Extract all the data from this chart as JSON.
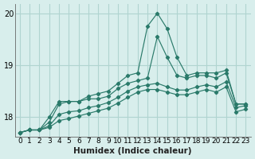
{
  "xlabel": "Humidex (Indice chaleur)",
  "background_color": "#d8eeec",
  "grid_color": "#b0d4d0",
  "line_color": "#2a7a6a",
  "xlim": [
    -0.5,
    23.5
  ],
  "ylim": [
    17.62,
    20.18
  ],
  "yticks": [
    18,
    19,
    20
  ],
  "xticks": [
    0,
    1,
    2,
    3,
    4,
    5,
    6,
    7,
    8,
    9,
    10,
    11,
    12,
    13,
    14,
    15,
    16,
    17,
    18,
    19,
    20,
    21,
    22,
    23
  ],
  "series1": [
    17.7,
    17.75,
    17.75,
    18.0,
    18.3,
    18.3,
    18.3,
    18.4,
    18.45,
    18.5,
    18.65,
    18.8,
    18.85,
    19.75,
    20.0,
    19.7,
    19.15,
    18.8,
    18.85,
    18.85,
    18.85,
    18.9,
    18.25,
    18.25
  ],
  "series2": [
    17.7,
    17.75,
    17.75,
    17.9,
    18.25,
    18.3,
    18.3,
    18.35,
    18.35,
    18.4,
    18.55,
    18.65,
    18.7,
    18.75,
    19.55,
    19.15,
    18.8,
    18.75,
    18.8,
    18.8,
    18.75,
    18.85,
    18.25,
    18.25
  ],
  "series3": [
    17.7,
    17.75,
    17.75,
    17.83,
    18.05,
    18.1,
    18.12,
    18.18,
    18.22,
    18.28,
    18.38,
    18.5,
    18.58,
    18.62,
    18.65,
    18.58,
    18.52,
    18.52,
    18.58,
    18.62,
    18.58,
    18.68,
    18.18,
    18.22
  ],
  "series4": [
    17.7,
    17.75,
    17.75,
    17.8,
    17.93,
    17.97,
    18.02,
    18.07,
    18.12,
    18.17,
    18.27,
    18.38,
    18.48,
    18.53,
    18.53,
    18.48,
    18.43,
    18.43,
    18.48,
    18.53,
    18.48,
    18.58,
    18.1,
    18.15
  ]
}
